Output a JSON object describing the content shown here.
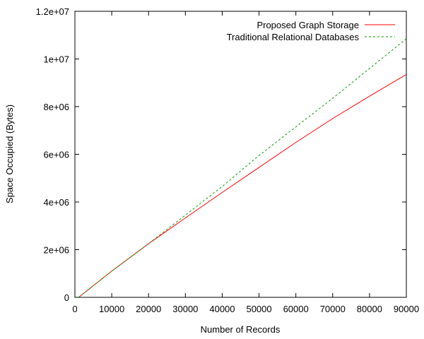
{
  "chart_data": {
    "type": "line",
    "xlabel": "Number of Records",
    "ylabel": "Space Occupied (Bytes)",
    "xlim": [
      0,
      90000
    ],
    "ylim": [
      0,
      12000000
    ],
    "x_ticks": [
      0,
      10000,
      20000,
      30000,
      40000,
      50000,
      60000,
      70000,
      80000,
      90000
    ],
    "x_tick_labels": [
      "0",
      "10000",
      "20000",
      "30000",
      "40000",
      "50000",
      "60000",
      "70000",
      "80000",
      "90000"
    ],
    "y_ticks": [
      0,
      2000000,
      4000000,
      6000000,
      8000000,
      10000000,
      12000000
    ],
    "y_tick_labels": [
      "0",
      "2e+06",
      "4e+06",
      "6e+06",
      "8e+06",
      "1e+07",
      "1.2e+07"
    ],
    "grid": false,
    "legend_position": "top-right",
    "series": [
      {
        "name": "Proposed Graph Storage",
        "color": "#ff0000",
        "style": "solid",
        "x": [
          1000,
          10000,
          20000,
          30000,
          40000,
          50000,
          60000,
          70000,
          80000,
          90000
        ],
        "y": [
          0,
          1100000,
          2250000,
          3330000,
          4400000,
          5450000,
          6500000,
          7500000,
          8440000,
          9350000
        ]
      },
      {
        "name": "Traditional Relational Databases",
        "color": "#00a000",
        "style": "dashed",
        "x": [
          1000,
          10000,
          20000,
          30000,
          40000,
          50000,
          60000,
          70000,
          80000,
          90000
        ],
        "y": [
          0,
          1100000,
          2250000,
          3450000,
          4650000,
          5950000,
          7150000,
          8350000,
          9600000,
          10850000
        ]
      }
    ]
  }
}
